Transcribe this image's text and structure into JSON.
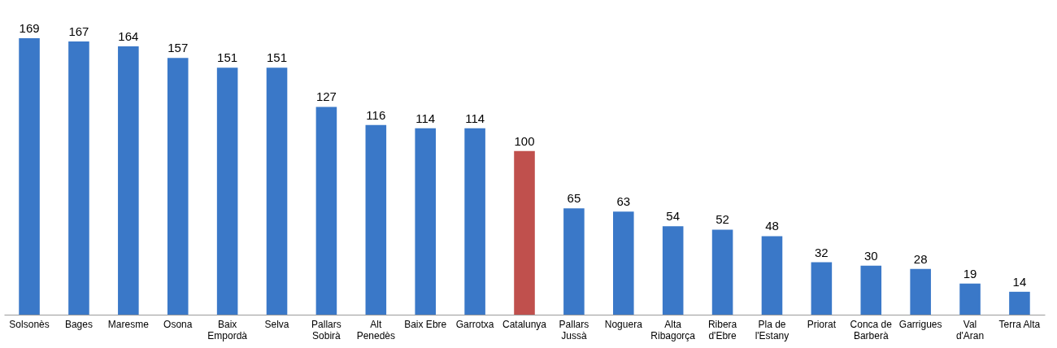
{
  "chart_data": {
    "type": "bar",
    "categories": [
      "Solsonès",
      "Bages",
      "Maresme",
      "Osona",
      "Baix\nEmpordà",
      "Selva",
      "Pallars\nSobirà",
      "Alt\nPenedès",
      "Baix Ebre",
      "Garrotxa",
      "Catalunya",
      "Pallars\nJussà",
      "Noguera",
      "Alta\nRibagorça",
      "Ribera\nd'Ebre",
      "Pla de\nl'Estany",
      "Priorat",
      "Conca de\nBarberà",
      "Garrigues",
      "Val\nd'Aran",
      "Terra Alta"
    ],
    "values": [
      169,
      167,
      164,
      157,
      151,
      151,
      127,
      116,
      114,
      114,
      100,
      65,
      63,
      54,
      52,
      48,
      32,
      30,
      28,
      19,
      14
    ],
    "colors": [
      "#3a78c8",
      "#3a78c8",
      "#3a78c8",
      "#3a78c8",
      "#3a78c8",
      "#3a78c8",
      "#3a78c8",
      "#3a78c8",
      "#3a78c8",
      "#3a78c8",
      "#c0504d",
      "#3a78c8",
      "#3a78c8",
      "#3a78c8",
      "#3a78c8",
      "#3a78c8",
      "#3a78c8",
      "#3a78c8",
      "#3a78c8",
      "#3a78c8",
      "#3a78c8"
    ],
    "data_labels": true
  }
}
